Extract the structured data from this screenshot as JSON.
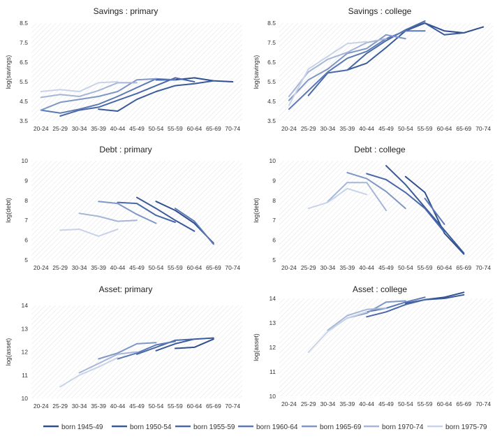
{
  "x_categories": [
    "20-24",
    "25-29",
    "30-34",
    "35-39",
    "40-44",
    "45-49",
    "50-54",
    "55-59",
    "60-64",
    "65-69",
    "70-74"
  ],
  "series_styles": [
    {
      "name": "born 1945-49",
      "color": "#2f4f8f"
    },
    {
      "name": "born 1950-54",
      "color": "#3a5a9a"
    },
    {
      "name": "born 1955-59",
      "color": "#4a68a8"
    },
    {
      "name": "born 1960-64",
      "color": "#5b79b5"
    },
    {
      "name": "born 1965-69",
      "color": "#7f97c6"
    },
    {
      "name": "born 1970-74",
      "color": "#a5b6d8"
    },
    {
      "name": "born 1975-79",
      "color": "#c8d3e8"
    }
  ],
  "chart_data": [
    {
      "type": "line",
      "title": "Savings : primary",
      "ylabel": "log(savings)",
      "ylim": [
        3.5,
        8.5
      ],
      "yticks": [
        "3.5",
        "4.5",
        "5.5",
        "6.5",
        "7.5",
        "8.5"
      ],
      "categories": [
        "20-24",
        "25-29",
        "30-34",
        "35-39",
        "40-44",
        "45-49",
        "50-54",
        "55-59",
        "60-64",
        "65-69",
        "70-74"
      ],
      "series": [
        {
          "name": "born 1945-49",
          "values": [
            null,
            null,
            null,
            null,
            null,
            null,
            5.6,
            5.6,
            5.7,
            5.55,
            5.5
          ]
        },
        {
          "name": "born 1950-54",
          "values": [
            null,
            null,
            null,
            4.1,
            4.0,
            4.6,
            5.0,
            5.3,
            5.4,
            5.55,
            null
          ]
        },
        {
          "name": "born 1955-59",
          "values": [
            null,
            3.75,
            4.05,
            4.2,
            4.55,
            4.9,
            5.3,
            5.7,
            5.5,
            null,
            null
          ]
        },
        {
          "name": "born 1960-64",
          "values": [
            4.05,
            3.9,
            4.1,
            4.35,
            4.75,
            5.2,
            5.65,
            5.6,
            null,
            null,
            null
          ]
        },
        {
          "name": "born 1965-69",
          "values": [
            4.05,
            4.45,
            4.6,
            4.75,
            5.0,
            5.6,
            5.65,
            null,
            null,
            null,
            null
          ]
        },
        {
          "name": "born 1970-74",
          "values": [
            4.7,
            4.85,
            4.75,
            5.05,
            5.45,
            5.45,
            null,
            null,
            null,
            null,
            null
          ]
        },
        {
          "name": "born 1975-79",
          "values": [
            5.0,
            5.1,
            5.0,
            5.45,
            5.5,
            null,
            null,
            null,
            null,
            null,
            null
          ]
        }
      ]
    },
    {
      "type": "line",
      "title": "Savings : college",
      "ylabel": "log(savings)",
      "ylim": [
        3.5,
        8.5
      ],
      "yticks": [
        "3.5",
        "4.5",
        "5.5",
        "6.5",
        "7.5",
        "8.5"
      ],
      "categories": [
        "20-24",
        "25-29",
        "30-34",
        "35-39",
        "40-44",
        "45-49",
        "50-54",
        "55-59",
        "60-64",
        "65-69",
        "70-74"
      ],
      "series": [
        {
          "name": "born 1945-49",
          "values": [
            null,
            null,
            null,
            null,
            null,
            null,
            8.15,
            8.5,
            8.1,
            8.0,
            8.3
          ]
        },
        {
          "name": "born 1950-54",
          "values": [
            null,
            null,
            null,
            6.1,
            6.45,
            7.25,
            8.1,
            8.5,
            7.9,
            8.0,
            null
          ]
        },
        {
          "name": "born 1955-59",
          "values": [
            null,
            4.8,
            5.95,
            6.1,
            6.95,
            7.6,
            8.15,
            8.6,
            null,
            null,
            null
          ]
        },
        {
          "name": "born 1960-64",
          "values": [
            4.1,
            5.05,
            6.0,
            6.7,
            7.05,
            7.7,
            8.1,
            8.1,
            null,
            null,
            null
          ]
        },
        {
          "name": "born 1965-69",
          "values": [
            4.55,
            5.6,
            6.15,
            6.95,
            7.2,
            7.9,
            7.7,
            null,
            null,
            null,
            null
          ]
        },
        {
          "name": "born 1970-74",
          "values": [
            4.75,
            6.0,
            6.65,
            7.0,
            7.5,
            7.7,
            null,
            null,
            null,
            null,
            null
          ]
        },
        {
          "name": "born 1975-79",
          "values": [
            4.3,
            6.15,
            6.8,
            7.45,
            7.55,
            null,
            null,
            null,
            null,
            null,
            null
          ]
        }
      ]
    },
    {
      "type": "line",
      "title": "Debt : primary",
      "ylabel": "log(debt)",
      "ylim": [
        5,
        10
      ],
      "yticks": [
        "5",
        "6",
        "7",
        "8",
        "9",
        "10"
      ],
      "categories": [
        "20-24",
        "25-29",
        "30-34",
        "35-39",
        "40-44",
        "45-49",
        "50-54",
        "55-59",
        "60-64",
        "65-69",
        "70-74"
      ],
      "series": [
        {
          "name": "born 1945-49",
          "values": [
            null,
            null,
            null,
            null,
            null,
            null,
            7.95,
            7.5,
            6.85,
            5.85,
            null
          ]
        },
        {
          "name": "born 1950-54",
          "values": [
            null,
            null,
            null,
            null,
            null,
            8.15,
            7.6,
            7.0,
            6.45,
            null,
            null
          ]
        },
        {
          "name": "born 1955-59",
          "values": [
            null,
            null,
            null,
            null,
            7.9,
            7.85,
            7.25,
            6.9,
            null,
            null,
            null
          ]
        },
        {
          "name": "born 1960-64",
          "values": [
            null,
            null,
            null,
            null,
            null,
            null,
            null,
            7.6,
            6.95,
            5.8,
            null
          ]
        },
        {
          "name": "born 1965-69",
          "values": [
            null,
            null,
            null,
            7.95,
            7.85,
            7.3,
            6.85,
            null,
            null,
            null,
            null
          ]
        },
        {
          "name": "born 1970-74",
          "values": [
            null,
            null,
            7.35,
            7.2,
            6.95,
            7.0,
            null,
            null,
            null,
            null,
            null
          ]
        },
        {
          "name": "born 1975-79",
          "values": [
            null,
            6.5,
            6.55,
            6.2,
            6.55,
            null,
            null,
            null,
            null,
            null,
            null
          ]
        }
      ]
    },
    {
      "type": "line",
      "title": "Debt : college",
      "ylabel": "log(debt)",
      "ylim": [
        5,
        10
      ],
      "yticks": [
        "5",
        "6",
        "7",
        "8",
        "9",
        "10"
      ],
      "categories": [
        "20-24",
        "25-29",
        "30-34",
        "35-39",
        "40-44",
        "45-49",
        "50-54",
        "55-59",
        "60-64",
        "65-69",
        "70-74"
      ],
      "series": [
        {
          "name": "born 1945-49",
          "values": [
            null,
            null,
            null,
            null,
            null,
            null,
            9.2,
            8.4,
            6.35,
            5.3,
            null
          ]
        },
        {
          "name": "born 1950-54",
          "values": [
            null,
            null,
            null,
            null,
            null,
            9.75,
            8.8,
            7.65,
            6.5,
            5.35,
            null
          ]
        },
        {
          "name": "born 1955-59",
          "values": [
            null,
            null,
            null,
            null,
            9.35,
            9.05,
            8.4,
            7.6,
            6.4,
            null,
            null
          ]
        },
        {
          "name": "born 1960-64",
          "values": [
            null,
            null,
            null,
            null,
            null,
            null,
            null,
            8.1,
            6.8,
            null,
            null
          ]
        },
        {
          "name": "born 1965-69",
          "values": [
            null,
            null,
            null,
            9.4,
            9.1,
            8.45,
            7.6,
            null,
            null,
            null,
            null
          ]
        },
        {
          "name": "born 1970-74",
          "values": [
            null,
            null,
            7.95,
            8.9,
            8.9,
            7.5,
            null,
            null,
            null,
            null,
            null
          ]
        },
        {
          "name": "born 1975-79",
          "values": [
            null,
            7.6,
            7.9,
            8.6,
            8.3,
            null,
            null,
            null,
            null,
            null,
            null
          ]
        }
      ]
    },
    {
      "type": "line",
      "title": "Asset: primary",
      "ylabel": "log(asset)",
      "ylim": [
        10,
        14
      ],
      "yticks": [
        "10",
        "11",
        "12",
        "13",
        "14"
      ],
      "categories": [
        "20-24",
        "25-29",
        "30-34",
        "35-39",
        "40-44",
        "45-49",
        "50-54",
        "55-59",
        "60-64",
        "65-69",
        "70-74"
      ],
      "series": [
        {
          "name": "born 1945-49",
          "values": [
            null,
            null,
            null,
            null,
            null,
            null,
            null,
            12.15,
            12.2,
            12.55,
            null
          ]
        },
        {
          "name": "born 1950-54",
          "values": [
            null,
            null,
            null,
            null,
            null,
            null,
            12.05,
            12.35,
            12.55,
            12.6,
            null
          ]
        },
        {
          "name": "born 1955-59",
          "values": [
            null,
            null,
            null,
            null,
            null,
            11.9,
            12.2,
            12.5,
            12.55,
            null,
            null
          ]
        },
        {
          "name": "born 1960-64",
          "values": [
            null,
            null,
            null,
            null,
            11.7,
            11.95,
            12.3,
            12.45,
            null,
            null,
            null
          ]
        },
        {
          "name": "born 1965-69",
          "values": [
            null,
            null,
            null,
            11.7,
            11.95,
            12.35,
            12.4,
            null,
            null,
            null,
            null
          ]
        },
        {
          "name": "born 1970-74",
          "values": [
            null,
            null,
            11.1,
            11.5,
            11.9,
            12.0,
            null,
            null,
            null,
            null,
            null
          ]
        },
        {
          "name": "born 1975-79",
          "values": [
            null,
            10.5,
            11.0,
            11.35,
            11.75,
            null,
            null,
            null,
            null,
            null,
            null
          ]
        }
      ]
    },
    {
      "type": "line",
      "title": "Asset : college",
      "ylabel": "log(asset)",
      "ylim": [
        10,
        14
      ],
      "yticks": [
        "10",
        "11",
        "12",
        "13",
        "14"
      ],
      "categories": [
        "20-24",
        "25-29",
        "30-34",
        "35-39",
        "40-44",
        "45-49",
        "50-54",
        "55-59",
        "60-64",
        "65-69",
        "70-74"
      ],
      "series": [
        {
          "name": "born 1945-49",
          "values": [
            null,
            null,
            null,
            null,
            null,
            null,
            null,
            13.95,
            14.05,
            14.25,
            null
          ]
        },
        {
          "name": "born 1950-54",
          "values": [
            null,
            null,
            null,
            null,
            null,
            null,
            13.8,
            13.95,
            14.0,
            14.15,
            null
          ]
        },
        {
          "name": "born 1955-59",
          "values": [
            null,
            null,
            null,
            null,
            13.25,
            13.45,
            13.75,
            13.95,
            null,
            null,
            null
          ]
        },
        {
          "name": "born 1960-64",
          "values": [
            null,
            null,
            null,
            null,
            13.45,
            13.6,
            13.85,
            14.05,
            null,
            null,
            null
          ]
        },
        {
          "name": "born 1965-69",
          "values": [
            null,
            null,
            null,
            13.2,
            13.4,
            13.85,
            13.9,
            null,
            null,
            null,
            null
          ]
        },
        {
          "name": "born 1970-74",
          "values": [
            null,
            null,
            12.7,
            13.3,
            13.55,
            13.6,
            null,
            null,
            null,
            null,
            null
          ]
        },
        {
          "name": "born 1975-79",
          "values": [
            null,
            11.8,
            12.65,
            13.2,
            13.45,
            null,
            null,
            null,
            null,
            null,
            null
          ]
        }
      ]
    }
  ]
}
